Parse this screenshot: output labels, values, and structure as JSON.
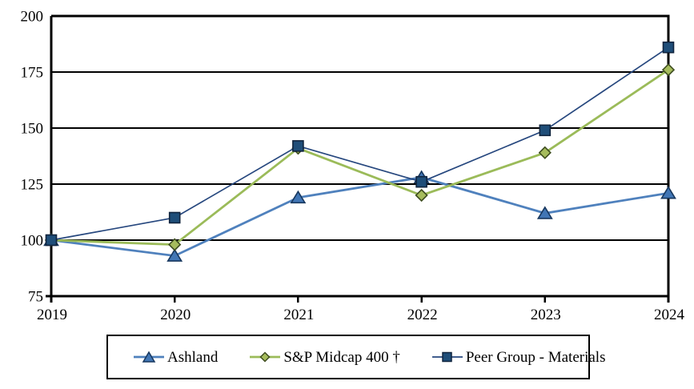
{
  "chart_data": {
    "type": "line",
    "title": "",
    "xlabel": "",
    "ylabel": "",
    "x": [
      "2019",
      "2020",
      "2021",
      "2022",
      "2023",
      "2024"
    ],
    "y_ticks": [
      75,
      100,
      125,
      150,
      175,
      200
    ],
    "ylim": [
      75,
      200
    ],
    "grid": "horizontal-only",
    "legend_position": "bottom",
    "axis_color": "#000000",
    "background_color": "#ffffff",
    "series": [
      {
        "name": "Ashland",
        "marker": "triangle",
        "marker_icon_name": "triangle-marker-icon",
        "line_color": "#4F81BD",
        "marker_fill": "#4176B5",
        "marker_stroke": "#17375E",
        "line_width": 2.8,
        "values": [
          100,
          93,
          119,
          128,
          112,
          121
        ]
      },
      {
        "name": "S&P Midcap 400 †",
        "marker": "diamond",
        "marker_icon_name": "diamond-marker-icon",
        "line_color": "#9BBB59",
        "marker_fill": "#A6BC5D",
        "marker_stroke": "#3E4D20",
        "line_width": 2.8,
        "values": [
          100,
          98,
          141,
          120,
          139,
          176
        ]
      },
      {
        "name": "Peer Group - Materials",
        "marker": "square",
        "marker_icon_name": "square-marker-icon",
        "line_color": "#26477E",
        "marker_fill": "#1F4E79",
        "marker_stroke": "#10243E",
        "line_width": 1.7,
        "values": [
          100,
          110,
          142,
          126,
          149,
          186
        ]
      }
    ]
  }
}
